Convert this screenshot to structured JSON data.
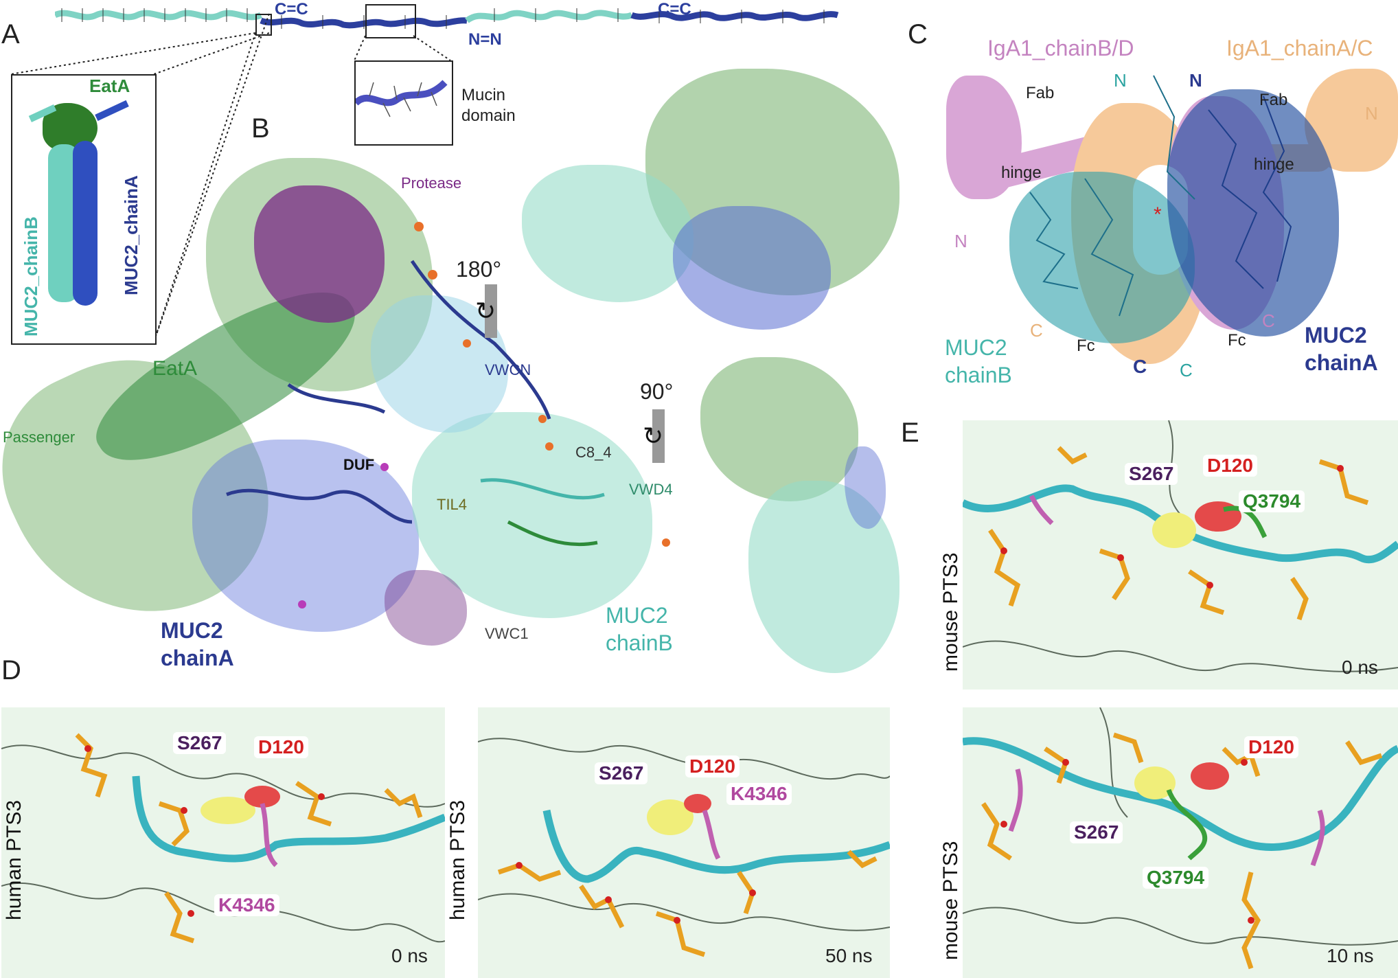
{
  "panels": {
    "A": "A",
    "B": "B",
    "C": "C",
    "D": "D",
    "E": "E"
  },
  "panelA": {
    "links": [
      "C=C",
      "N=N",
      "C=C"
    ],
    "inset_label": "Mucin domain",
    "eata": "EatA",
    "chainB": "MUC2_chainB",
    "chainA": "MUC2_chainA"
  },
  "panelB": {
    "protease": "Protease",
    "rot180": "180°",
    "rot90": "90°",
    "eata": "EatA",
    "passenger": "Passenger",
    "vwcn": "VWCN",
    "c8_4": "C8_4",
    "duf": "DUF",
    "til4": "TIL4",
    "vwd4": "VWD4",
    "vwc1": "VWC1",
    "muc2a_1": "MUC2",
    "muc2a_2": "chainA",
    "muc2b_1": "MUC2",
    "muc2b_2": "chainB"
  },
  "panelC": {
    "chainBD": "IgA1_chainB/D",
    "chainAC": "IgA1_chainA/C",
    "fab_left": "Fab",
    "fab_right": "Fab",
    "hinge_left": "hinge",
    "hinge_right": "hinge",
    "n_top1": "N",
    "n_top2": "N",
    "n_right": "N",
    "n_left": "N",
    "c_left": "C",
    "c_mid1": "C",
    "c_mid2": "C",
    "c_right": "C",
    "fc_left": "Fc",
    "fc_right": "Fc",
    "star": "*",
    "muc2b_1": "MUC2",
    "muc2b_2": "chainB",
    "muc2a_1": "MUC2",
    "muc2a_2": "chainA"
  },
  "panelD": {
    "ylabel1": "human PTS3",
    "ylabel2": "human PTS3",
    "left": {
      "s267": "S267",
      "d120": "D120",
      "k4346": "K4346",
      "time": "0 ns"
    },
    "right": {
      "s267": "S267",
      "d120": "D120",
      "k4346": "K4346",
      "time": "50 ns"
    }
  },
  "panelE": {
    "ylabel1": "mouse PTS3",
    "ylabel2": "mouse PTS3",
    "top": {
      "s267": "S267",
      "d120": "D120",
      "q3794": "Q3794",
      "time": "0 ns"
    },
    "bottom": {
      "s267": "S267",
      "d120": "D120",
      "q3794": "Q3794",
      "time": "10 ns"
    }
  },
  "colors": {
    "eata_green": "#2e8b3a",
    "muc2_chainA": "#2b3a8f",
    "muc2_chainB": "#45b5aa",
    "protease_purple": "#7a2a86",
    "iga_pink": "#d9a6d6",
    "iga_peach": "#f6c99a",
    "d120_red": "#d42020",
    "s267_purple": "#4a1f5e",
    "k4346_pink": "#b0489f",
    "q3794_green": "#2c8a2c"
  }
}
